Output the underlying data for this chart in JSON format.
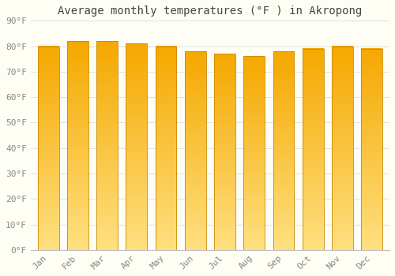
{
  "title": "Average monthly temperatures (°F ) in Akropong",
  "months": [
    "Jan",
    "Feb",
    "Mar",
    "Apr",
    "May",
    "Jun",
    "Jul",
    "Aug",
    "Sep",
    "Oct",
    "Nov",
    "Dec"
  ],
  "values": [
    80,
    82,
    82,
    81,
    80,
    78,
    77,
    76,
    78,
    79,
    80,
    79
  ],
  "bar_color_top": "#F5A800",
  "bar_color_bottom": "#FFE080",
  "bar_edge_color": "#CC8800",
  "ylim": [
    0,
    90
  ],
  "yticks": [
    0,
    10,
    20,
    30,
    40,
    50,
    60,
    70,
    80,
    90
  ],
  "ytick_labels": [
    "0°F",
    "10°F",
    "20°F",
    "30°F",
    "40°F",
    "50°F",
    "60°F",
    "70°F",
    "80°F",
    "90°F"
  ],
  "background_color": "#FEFEF5",
  "grid_color": "#E0E0E0",
  "title_fontsize": 10,
  "tick_fontsize": 8,
  "bar_width": 0.72
}
